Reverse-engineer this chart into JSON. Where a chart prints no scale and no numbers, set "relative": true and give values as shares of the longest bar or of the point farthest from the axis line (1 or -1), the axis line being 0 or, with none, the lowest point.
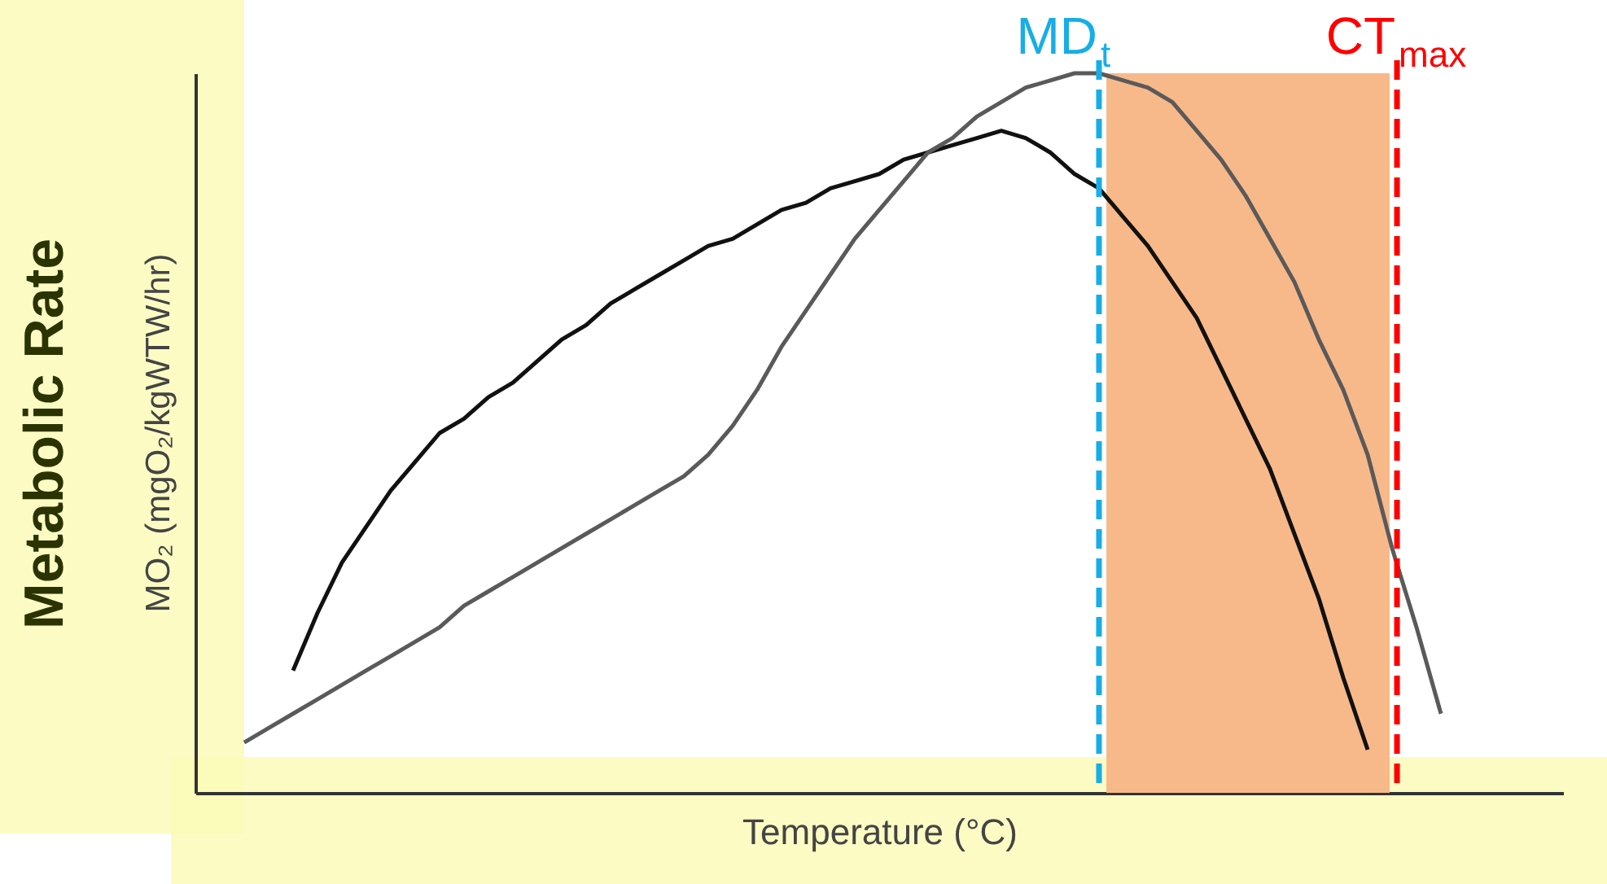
{
  "chart_data": {
    "type": "line",
    "relative": true,
    "xlabel": "Temperature (°C)",
    "ylabel": "Metabolic Rate",
    "annotations": [
      "MO₂ (mgO₂/kgWTW/hr)",
      "MD$_{t}$",
      "CT$_{max}$"
    ],
    "categories": [
      null,
      null,
      null,
      null,
      null,
      null,
      null,
      null,
      null,
      null,
      null,
      null,
      null,
      null,
      null,
      null,
      null,
      null,
      null,
      null,
      null,
      null,
      null,
      null,
      null,
      null,
      null,
      null,
      null,
      null,
      null,
      null,
      null,
      null,
      null,
      null,
      null,
      null,
      null,
      null,
      null,
      null,
      null,
      null,
      null,
      null,
      null,
      null,
      null,
      null,
      null,
      null,
      null,
      null,
      null,
      null,
      null
    ],
    "series": [
      {
        "color": "#111111",
        "values": [
          null,
          null,
          null,
          null,
          0.17,
          0.25,
          0.32,
          0.37,
          0.42,
          0.46,
          0.5,
          0.52,
          0.55,
          0.57,
          0.6,
          0.63,
          0.65,
          0.68,
          0.7,
          0.72,
          0.74,
          0.76,
          0.77,
          0.79,
          0.81,
          0.82,
          0.84,
          0.85,
          0.86,
          0.88,
          0.89,
          0.9,
          0.91,
          0.92,
          0.91,
          0.89,
          0.86,
          0.84,
          0.8,
          0.76,
          0.71,
          0.66,
          0.59,
          0.52,
          0.45,
          0.36,
          0.27,
          0.16,
          0.06,
          null,
          null,
          null,
          null,
          null,
          null,
          null,
          null
        ]
      },
      {
        "color": "#5a5a5a",
        "values": [
          null,
          null,
          0.07,
          0.09,
          0.11,
          0.13,
          0.15,
          0.17,
          0.19,
          0.21,
          0.23,
          0.26,
          0.28,
          0.3,
          0.32,
          0.34,
          0.36,
          0.38,
          0.4,
          0.42,
          0.44,
          0.47,
          0.51,
          0.56,
          0.62,
          0.67,
          0.72,
          0.77,
          0.81,
          0.85,
          0.89,
          0.91,
          0.94,
          0.96,
          0.98,
          0.99,
          1,
          1,
          0.99,
          0.98,
          0.96,
          0.92,
          0.88,
          0.83,
          0.77,
          0.71,
          0.63,
          0.56,
          0.47,
          0.34,
          0.23,
          0.11,
          null,
          null,
          null,
          null,
          null
        ]
      }
    ]
  }
}
